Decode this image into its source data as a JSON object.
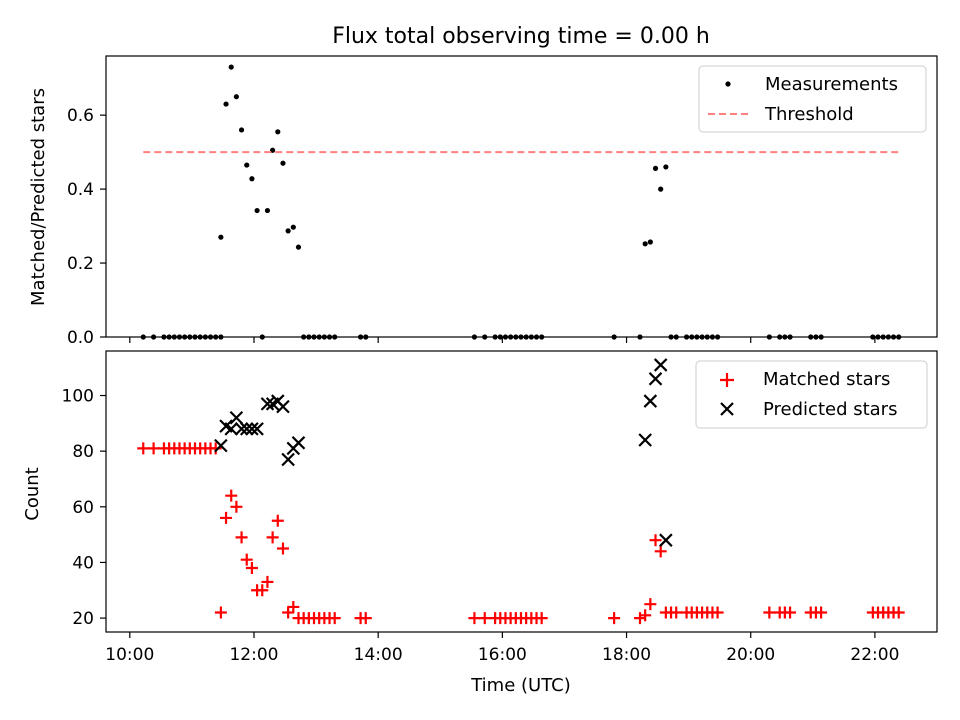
{
  "figure": {
    "title": "Flux total observing time = 0.00 h"
  },
  "chart_data": [
    {
      "type": "scatter",
      "panel": "top",
      "ylabel": "Matched/Predicted stars",
      "xlabel": "",
      "xlim": [
        "09:37",
        "23:00"
      ],
      "ylim": [
        0.0,
        0.76
      ],
      "yticks": [
        0.0,
        0.2,
        0.4,
        0.6
      ],
      "ytick_labels": [
        "0.0",
        "0.2",
        "0.4",
        "0.6"
      ],
      "legend": {
        "placement": "upper right"
      },
      "series": [
        {
          "name": "Measurements",
          "marker": "dot",
          "color": "#000000",
          "points": [
            [
              "10:13",
              0
            ],
            [
              "10:23",
              0
            ],
            [
              "10:33",
              0
            ],
            [
              "10:38",
              0
            ],
            [
              "10:43",
              0
            ],
            [
              "10:48",
              0
            ],
            [
              "10:53",
              0
            ],
            [
              "10:58",
              0
            ],
            [
              "11:03",
              0
            ],
            [
              "11:08",
              0
            ],
            [
              "11:13",
              0
            ],
            [
              "11:18",
              0
            ],
            [
              "11:23",
              0
            ],
            [
              "11:28",
              0
            ],
            [
              "11:28",
              0.27
            ],
            [
              "11:33",
              0.63
            ],
            [
              "11:38",
              0.73
            ],
            [
              "11:43",
              0.65
            ],
            [
              "11:48",
              0.56
            ],
            [
              "11:53",
              0.465
            ],
            [
              "11:58",
              0.428
            ],
            [
              "12:03",
              0.342
            ],
            [
              "12:08",
              0
            ],
            [
              "12:13",
              0.342
            ],
            [
              "12:18",
              0.505
            ],
            [
              "12:23",
              0.555
            ],
            [
              "12:28",
              0.47
            ],
            [
              "12:33",
              0.287
            ],
            [
              "12:38",
              0.297
            ],
            [
              "12:43",
              0.243
            ],
            [
              "12:48",
              0
            ],
            [
              "12:53",
              0
            ],
            [
              "12:58",
              0
            ],
            [
              "13:03",
              0
            ],
            [
              "13:08",
              0
            ],
            [
              "13:13",
              0
            ],
            [
              "13:18",
              0
            ],
            [
              "13:43",
              0
            ],
            [
              "13:48",
              0
            ],
            [
              "15:33",
              0
            ],
            [
              "15:43",
              0
            ],
            [
              "15:53",
              0
            ],
            [
              "15:58",
              0
            ],
            [
              "16:03",
              0
            ],
            [
              "16:08",
              0
            ],
            [
              "16:13",
              0
            ],
            [
              "16:18",
              0
            ],
            [
              "16:23",
              0
            ],
            [
              "16:28",
              0
            ],
            [
              "16:33",
              0
            ],
            [
              "16:38",
              0
            ],
            [
              "17:48",
              0
            ],
            [
              "18:13",
              0
            ],
            [
              "18:18",
              0.252
            ],
            [
              "18:23",
              0.257
            ],
            [
              "18:28",
              0.456
            ],
            [
              "18:33",
              0.4
            ],
            [
              "18:38",
              0.46
            ],
            [
              "18:43",
              0
            ],
            [
              "18:48",
              0
            ],
            [
              "18:58",
              0
            ],
            [
              "19:03",
              0
            ],
            [
              "19:08",
              0
            ],
            [
              "19:13",
              0
            ],
            [
              "19:18",
              0
            ],
            [
              "19:23",
              0
            ],
            [
              "19:28",
              0
            ],
            [
              "20:18",
              0
            ],
            [
              "20:28",
              0
            ],
            [
              "20:33",
              0
            ],
            [
              "20:38",
              0
            ],
            [
              "20:58",
              0
            ],
            [
              "21:03",
              0
            ],
            [
              "21:08",
              0
            ],
            [
              "21:58",
              0
            ],
            [
              "22:03",
              0
            ],
            [
              "22:08",
              0
            ],
            [
              "22:13",
              0
            ],
            [
              "22:18",
              0
            ],
            [
              "22:23",
              0
            ]
          ]
        },
        {
          "name": "Threshold",
          "marker": "dashed-line",
          "color": "#ff7f7f",
          "points": [
            [
              "10:13",
              0.5
            ],
            [
              "22:23",
              0.5
            ]
          ]
        }
      ]
    },
    {
      "type": "scatter",
      "panel": "bottom",
      "xlabel": "Time (UTC)",
      "ylabel": "Count",
      "xlim": [
        "09:37",
        "23:00"
      ],
      "ylim": [
        15,
        116
      ],
      "xticks": [
        "10:00",
        "12:00",
        "14:00",
        "16:00",
        "18:00",
        "20:00",
        "22:00"
      ],
      "xtick_labels": [
        "10:00",
        "12:00",
        "14:00",
        "16:00",
        "18:00",
        "20:00",
        "22:00"
      ],
      "yticks": [
        20,
        40,
        60,
        80,
        100
      ],
      "ytick_labels": [
        "20",
        "40",
        "60",
        "80",
        "100"
      ],
      "legend": {
        "placement": "upper right"
      },
      "series": [
        {
          "name": "Matched stars",
          "marker": "plus",
          "color": "#ff0000",
          "points": [
            [
              "10:13",
              81
            ],
            [
              "10:23",
              81
            ],
            [
              "10:33",
              81
            ],
            [
              "10:38",
              81
            ],
            [
              "10:43",
              81
            ],
            [
              "10:48",
              81
            ],
            [
              "10:53",
              81
            ],
            [
              "10:58",
              81
            ],
            [
              "11:03",
              81
            ],
            [
              "11:08",
              81
            ],
            [
              "11:13",
              81
            ],
            [
              "11:18",
              81
            ],
            [
              "11:23",
              81
            ],
            [
              "11:28",
              22
            ],
            [
              "11:33",
              56
            ],
            [
              "11:38",
              64
            ],
            [
              "11:43",
              60
            ],
            [
              "11:48",
              49
            ],
            [
              "11:53",
              41
            ],
            [
              "11:58",
              38
            ],
            [
              "12:03",
              30
            ],
            [
              "12:08",
              30
            ],
            [
              "12:13",
              33
            ],
            [
              "12:18",
              49
            ],
            [
              "12:23",
              55
            ],
            [
              "12:28",
              45
            ],
            [
              "12:33",
              22
            ],
            [
              "12:38",
              24
            ],
            [
              "12:43",
              20
            ],
            [
              "12:48",
              20
            ],
            [
              "12:53",
              20
            ],
            [
              "12:58",
              20
            ],
            [
              "13:03",
              20
            ],
            [
              "13:08",
              20
            ],
            [
              "13:13",
              20
            ],
            [
              "13:18",
              20
            ],
            [
              "13:43",
              20
            ],
            [
              "13:48",
              20
            ],
            [
              "15:33",
              20
            ],
            [
              "15:43",
              20
            ],
            [
              "15:53",
              20
            ],
            [
              "15:58",
              20
            ],
            [
              "16:03",
              20
            ],
            [
              "16:08",
              20
            ],
            [
              "16:13",
              20
            ],
            [
              "16:18",
              20
            ],
            [
              "16:23",
              20
            ],
            [
              "16:28",
              20
            ],
            [
              "16:33",
              20
            ],
            [
              "16:38",
              20
            ],
            [
              "17:48",
              20
            ],
            [
              "18:13",
              20
            ],
            [
              "18:18",
              21
            ],
            [
              "18:23",
              25
            ],
            [
              "18:28",
              48
            ],
            [
              "18:33",
              44
            ],
            [
              "18:38",
              22
            ],
            [
              "18:43",
              22
            ],
            [
              "18:48",
              22
            ],
            [
              "18:58",
              22
            ],
            [
              "19:03",
              22
            ],
            [
              "19:08",
              22
            ],
            [
              "19:13",
              22
            ],
            [
              "19:18",
              22
            ],
            [
              "19:23",
              22
            ],
            [
              "19:28",
              22
            ],
            [
              "20:18",
              22
            ],
            [
              "20:28",
              22
            ],
            [
              "20:33",
              22
            ],
            [
              "20:38",
              22
            ],
            [
              "20:58",
              22
            ],
            [
              "21:03",
              22
            ],
            [
              "21:08",
              22
            ],
            [
              "21:58",
              22
            ],
            [
              "22:03",
              22
            ],
            [
              "22:08",
              22
            ],
            [
              "22:13",
              22
            ],
            [
              "22:18",
              22
            ],
            [
              "22:23",
              22
            ]
          ]
        },
        {
          "name": "Predicted stars",
          "marker": "x",
          "color": "#000000",
          "points": [
            [
              "11:28",
              82
            ],
            [
              "11:33",
              89
            ],
            [
              "11:38",
              88
            ],
            [
              "11:43",
              92
            ],
            [
              "11:48",
              88
            ],
            [
              "11:53",
              88
            ],
            [
              "11:58",
              88
            ],
            [
              "12:03",
              88
            ],
            [
              "12:13",
              97
            ],
            [
              "12:18",
              97
            ],
            [
              "12:23",
              98
            ],
            [
              "12:28",
              96
            ],
            [
              "12:33",
              77
            ],
            [
              "12:38",
              81
            ],
            [
              "12:43",
              83
            ],
            [
              "18:18",
              84
            ],
            [
              "18:23",
              98
            ],
            [
              "18:28",
              106
            ],
            [
              "18:33",
              111
            ],
            [
              "18:38",
              48
            ]
          ]
        }
      ]
    }
  ]
}
